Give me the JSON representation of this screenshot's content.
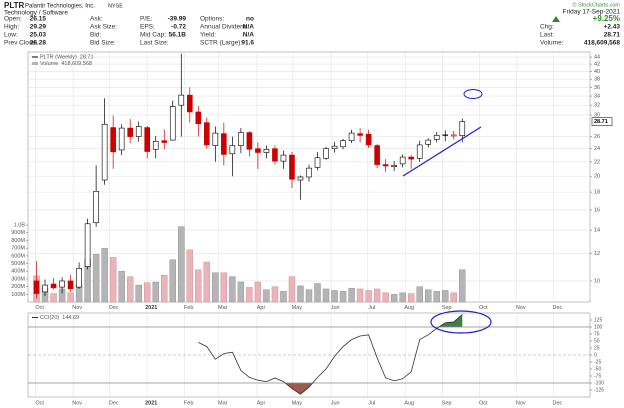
{
  "header": {
    "symbol": "PLTR",
    "name": "Palantir Technologies, Inc.",
    "exchange": "NYSE",
    "sector": "Technology / Software",
    "copyright": "© StockCharts.com",
    "date": "Friday 17-Sep-2021",
    "change_pct": "+9.25%",
    "stats": [
      [
        {
          "label": "Open:",
          "value": "26.15"
        },
        {
          "label": "Ask:"
        },
        {
          "label": "P/E:",
          "value": "-39.99"
        },
        {
          "label": "Options:",
          "value": "no"
        }
      ],
      [
        {
          "label": "High:",
          "value": "29.29"
        },
        {
          "label": "Ask Size:"
        },
        {
          "label": "EPS:",
          "value": "-0.72"
        },
        {
          "label": "Annual Dividend:",
          "value": "N/A"
        }
      ],
      [
        {
          "label": "Low:",
          "value": "25.03"
        },
        {
          "label": "Bid:"
        },
        {
          "label": "Mid Cap:",
          "value": "56.1B"
        },
        {
          "label": "Yield:",
          "value": "N/A"
        }
      ],
      [
        {
          "label": "Prev Close:",
          "value": "26.28"
        },
        {
          "label": "Bid Size:"
        },
        {
          "label": "Last Size:"
        },
        {
          "label": "SCTR (Large):",
          "value": "91.6"
        }
      ]
    ],
    "quote": [
      {
        "label": "Chg:",
        "value": "+2.43"
      },
      {
        "label": "Last:",
        "value": "28.71"
      },
      {
        "label": "Volume:",
        "value": "418,609,568"
      }
    ]
  },
  "chart_data": [
    {
      "type": "candlestick",
      "name": "PLTR (Weekly)",
      "log_scale": true,
      "grid": true,
      "up_color": "#000000",
      "down_color": "#cc0000",
      "x": [
        0,
        1,
        2,
        3,
        4,
        5,
        6,
        7,
        8,
        9,
        10,
        11,
        12,
        13,
        14,
        15,
        16,
        17,
        18,
        19,
        20,
        21,
        22,
        23,
        24,
        25,
        26,
        27,
        28,
        29,
        30,
        31,
        32,
        33,
        34,
        35,
        36,
        37,
        38,
        39,
        40,
        41,
        42,
        43,
        44,
        45,
        46,
        47,
        48,
        49,
        50
      ],
      "open": [
        10.0,
        9.3,
        9.8,
        9.6,
        10.0,
        9.6,
        11.0,
        14.7,
        19.5,
        27.6,
        23.8,
        27.5,
        26.0,
        27.6,
        23.9,
        25.3,
        25.4,
        32.0,
        34.2,
        30.6,
        28.5,
        24.5,
        26.5,
        23.2,
        24.5,
        26.7,
        24.0,
        23.4,
        24.0,
        22.1,
        23.0,
        19.5,
        19.9,
        21.2,
        22.5,
        24.0,
        24.3,
        25.3,
        26.5,
        26.4,
        24.5,
        21.6,
        21.3,
        21.7,
        22.7,
        22.5,
        24.7,
        25.5,
        26.3,
        26.1,
        26.15
      ],
      "high": [
        11.41,
        10.1,
        10.2,
        10.25,
        10.4,
        11.3,
        15.1,
        21.5,
        33.5,
        29.9,
        28.2,
        29.2,
        28.7,
        27.9,
        26.1,
        27.3,
        33.0,
        45.0,
        36.0,
        31.8,
        29.5,
        27.8,
        28.5,
        26.0,
        27.5,
        26.9,
        25.0,
        24.5,
        24.5,
        23.7,
        23.5,
        20.1,
        21.6,
        23.5,
        24.3,
        25.1,
        25.6,
        27.2,
        27.5,
        27.2,
        24.8,
        22.4,
        22.1,
        23.1,
        23.0,
        25.3,
        25.7,
        26.8,
        27.1,
        27.0,
        29.29
      ],
      "low": [
        8.9,
        9.05,
        9.45,
        9.2,
        9.3,
        9.5,
        10.8,
        14.3,
        18.9,
        21.0,
        23.0,
        24.9,
        25.1,
        22.5,
        22.5,
        23.9,
        25.3,
        26.0,
        28.5,
        26.0,
        24.0,
        22.0,
        21.5,
        20.0,
        23.3,
        22.8,
        21.0,
        22.5,
        21.6,
        21.0,
        18.5,
        17.1,
        19.3,
        20.8,
        22.3,
        23.4,
        23.9,
        24.9,
        25.0,
        24.1,
        21.1,
        20.6,
        20.7,
        21.2,
        21.0,
        22.0,
        24.2,
        25.0,
        25.2,
        25.5,
        25.03
      ],
      "close": [
        9.2,
        9.73,
        9.55,
        10.0,
        9.5,
        10.87,
        14.6,
        18.1,
        28.2,
        23.5,
        27.5,
        26.0,
        27.8,
        23.55,
        25.2,
        25.0,
        31.7,
        34.2,
        30.6,
        28.3,
        24.6,
        26.6,
        23.1,
        24.5,
        26.7,
        23.9,
        23.4,
        23.9,
        22.1,
        23.0,
        19.6,
        19.9,
        21.1,
        22.6,
        24.0,
        24.4,
        25.3,
        26.6,
        26.2,
        24.6,
        21.6,
        21.4,
        21.5,
        22.7,
        22.4,
        24.6,
        25.4,
        26.2,
        26.3,
        26.28,
        28.71
      ],
      "xlim": [
        -1,
        65
      ],
      "ylim": [
        8.7,
        45.5
      ],
      "yticks": [
        10,
        12,
        14,
        16,
        18,
        20,
        22,
        24,
        26,
        30,
        32,
        34,
        36,
        38,
        40,
        42,
        44
      ],
      "xticks": [
        {
          "value": -0.1,
          "label": "Oct"
        },
        {
          "value": 4.3,
          "label": "Nov"
        },
        {
          "value": 8.6,
          "label": "Dec"
        },
        {
          "value": 13,
          "label": "2021"
        },
        {
          "value": 17.4,
          "label": "Feb"
        },
        {
          "value": 21.4,
          "label": "Mar"
        },
        {
          "value": 25.9,
          "label": "Apr"
        },
        {
          "value": 30.1,
          "label": "May"
        },
        {
          "value": 34.6,
          "label": "Jun"
        },
        {
          "value": 38.9,
          "label": "Jul"
        },
        {
          "value": 43.3,
          "label": "Aug"
        },
        {
          "value": 47.7,
          "label": "Sep"
        },
        {
          "value": 52,
          "label": "Oct"
        },
        {
          "value": 56.4,
          "label": "Nov"
        },
        {
          "value": 60.7,
          "label": "Dec"
        }
      ],
      "volume": [
        340,
        180,
        110,
        170,
        120,
        220,
        560,
        620,
        700,
        580,
        400,
        330,
        220,
        250,
        260,
        350,
        550,
        980,
        680,
        420,
        520,
        380,
        380,
        330,
        260,
        190,
        260,
        160,
        200,
        140,
        330,
        210,
        160,
        240,
        170,
        150,
        140,
        180,
        170,
        150,
        170,
        120,
        100,
        120,
        110,
        200,
        160,
        140,
        150,
        120,
        418.609568
      ],
      "volume_legend": {
        "name": "Volume",
        "label": "418,609,568"
      },
      "volume_colors": {
        "up": "#b5b5b5",
        "down": "#eab3b9"
      },
      "volume_ylim": [
        0,
        3250
      ],
      "volume_ticks": [
        {
          "value": 100,
          "label": "100M"
        },
        {
          "value": 200,
          "label": "200M"
        },
        {
          "value": 300,
          "label": "300M"
        },
        {
          "value": 400,
          "label": "400M"
        },
        {
          "value": 500,
          "label": "500M"
        },
        {
          "value": 600,
          "label": "600M"
        },
        {
          "value": 700,
          "label": "700M"
        },
        {
          "value": 800,
          "label": "800M"
        },
        {
          "value": 900,
          "label": "900M"
        },
        {
          "value": 1000,
          "label": "1.0B"
        }
      ]
    },
    {
      "type": "line",
      "x": [
        0,
        1,
        2,
        3,
        4,
        5,
        6,
        7,
        8,
        9,
        10,
        11,
        12,
        13,
        14,
        15,
        16,
        17,
        18,
        19,
        20,
        21,
        22,
        23,
        24,
        25,
        26,
        27,
        28,
        29,
        30,
        31,
        32,
        33,
        34,
        35,
        36,
        37,
        38,
        39,
        40,
        41,
        42,
        43,
        44,
        45,
        46,
        47,
        48,
        49,
        50
      ],
      "series": [
        {
          "name": "CCI(20)",
          "color": "#333333",
          "values": [
            null,
            null,
            null,
            null,
            null,
            null,
            null,
            null,
            null,
            null,
            null,
            null,
            null,
            null,
            null,
            null,
            null,
            null,
            null,
            45,
            30,
            -15,
            5,
            10,
            -55,
            -80,
            -90,
            -95,
            -82,
            -95,
            -120,
            -140,
            -115,
            -80,
            -50,
            -5,
            30,
            55,
            68,
            72,
            -10,
            -82,
            -92,
            -85,
            -60,
            55,
            72,
            95,
            115,
            118,
            144.69
          ]
        }
      ],
      "xlim": [
        -1,
        65
      ],
      "ylim": [
        -150,
        150
      ],
      "yticks": [
        125,
        100,
        75,
        50,
        25,
        0,
        -25,
        -50,
        -75,
        -100,
        -125
      ],
      "levels": [
        100,
        -100
      ],
      "level_colors": [
        "#3f7f3f",
        "#9a5a50"
      ],
      "midline": 0
    }
  ]
}
